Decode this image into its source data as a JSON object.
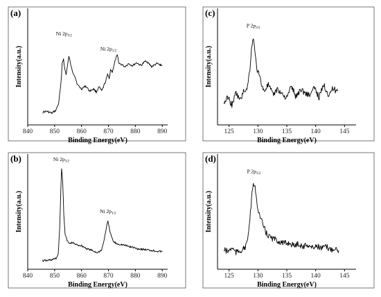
{
  "chart_data": [
    {
      "panel": "(a)",
      "type": "line",
      "xlabel": "Binding Energy(eV)",
      "ylabel": "Intensity(a.u.)",
      "xlim": [
        840,
        892
      ],
      "xticks": [
        840,
        850,
        860,
        870,
        880,
        890
      ],
      "ylim": [
        0,
        100
      ],
      "annotations": [
        {
          "text": "Ni 2p",
          "sub": "3/2",
          "x": 853.5,
          "y": 80
        },
        {
          "text": "Ni 2p",
          "sub": "1/2",
          "x": 870.0,
          "y": 65
        }
      ],
      "series": [
        {
          "x": [
            845.5,
            847,
            849,
            850.5,
            851.5,
            852.3,
            852.8,
            853.3,
            853.8,
            854.3,
            854.8,
            855.3,
            855.8,
            856.5,
            857.5,
            858.5,
            860,
            861.5,
            863,
            864.5,
            865.5,
            866.5,
            867.5,
            868.3,
            869,
            869.7,
            870.3,
            870.8,
            871.4,
            872,
            872.7,
            873.3,
            874,
            875,
            876,
            877.5,
            879,
            880.5,
            882,
            884,
            886,
            888,
            890
          ],
          "y": [
            7,
            8,
            6,
            9,
            16,
            34,
            55,
            60,
            49,
            44,
            54,
            62,
            56,
            48,
            43,
            34,
            30,
            33,
            28,
            30,
            27,
            32,
            28,
            33,
            38,
            44,
            41,
            49,
            47,
            52,
            60,
            63,
            55,
            54,
            52,
            55,
            53,
            56,
            53,
            58,
            52,
            55,
            53
          ]
        }
      ]
    },
    {
      "panel": "(b)",
      "type": "line",
      "xlabel": "Binding Energy(eV)",
      "ylabel": "Intensity(a.u.)",
      "xlim": [
        840,
        892
      ],
      "xticks": [
        840,
        850,
        860,
        870,
        880,
        890
      ],
      "ylim": [
        0,
        100
      ],
      "annotations": [
        {
          "text": "Ni 2p",
          "sub": "3/2",
          "x": 852.5,
          "y": 100
        },
        {
          "text": "Ni 2p",
          "sub": "1/2",
          "x": 869.8,
          "y": 48
        }
      ],
      "series": [
        {
          "x": [
            845.5,
            847,
            849,
            850.5,
            851.3,
            851.9,
            852.3,
            852.6,
            853.0,
            853.4,
            853.9,
            854.6,
            855.5,
            856.5,
            858,
            860,
            862,
            864,
            866,
            867.5,
            868.5,
            869.2,
            869.8,
            870.3,
            871,
            871.8,
            873,
            875,
            878,
            881,
            884,
            887,
            890
          ],
          "y": [
            3,
            3,
            4,
            5,
            9,
            35,
            75,
            95,
            82,
            50,
            30,
            23,
            20,
            21,
            19,
            18,
            15,
            13,
            11,
            14,
            25,
            36,
            42,
            36,
            28,
            22,
            20,
            19,
            17,
            15,
            14,
            13,
            12
          ]
        }
      ]
    },
    {
      "panel": "(c)",
      "type": "line",
      "xlabel": "Binding Energy(eV)",
      "ylabel": "Intensity(a.u.)",
      "xlim": [
        123,
        147
      ],
      "xticks": [
        125,
        130,
        135,
        140,
        145
      ],
      "ylim": [
        0,
        100
      ],
      "annotations": [
        {
          "text": "P 2p",
          "sub": "3/2",
          "x": 129.2,
          "y": 88
        }
      ],
      "series": [
        {
          "x": [
            124.1,
            124.8,
            125.5,
            126.2,
            126.9,
            127.6,
            128.2,
            128.6,
            128.9,
            129.2,
            129.5,
            129.9,
            130.4,
            131.0,
            131.8,
            132.6,
            133.4,
            134.2,
            135.0,
            135.8,
            136.6,
            137.4,
            138.2,
            139.0,
            139.8,
            140.6,
            141.4,
            142.2,
            143.0,
            143.8
          ],
          "y": [
            16,
            22,
            14,
            26,
            19,
            28,
            32,
            50,
            70,
            82,
            64,
            48,
            40,
            28,
            34,
            24,
            30,
            25,
            21,
            33,
            22,
            30,
            26,
            24,
            31,
            22,
            34,
            25,
            30,
            28
          ]
        }
      ]
    },
    {
      "panel": "(d)",
      "type": "line",
      "xlabel": "Binding Energy(eV)",
      "ylabel": "Intensity(a.u.)",
      "xlim": [
        123,
        147
      ],
      "xticks": [
        125,
        130,
        135,
        140,
        145
      ],
      "ylim": [
        0,
        100
      ],
      "annotations": [
        {
          "text": "P 2p",
          "sub": "3/2",
          "x": 129.3,
          "y": 88
        }
      ],
      "series": [
        {
          "x": [
            124.1,
            124.8,
            125.5,
            126.2,
            126.9,
            127.6,
            128.1,
            128.5,
            128.8,
            129.1,
            129.4,
            129.7,
            130.0,
            130.4,
            130.9,
            131.5,
            132.2,
            133.0,
            133.8,
            134.6,
            135.4,
            136.2,
            137.0,
            137.8,
            138.6,
            139.4,
            140.2,
            141.0,
            141.8,
            142.6,
            143.4,
            144.0
          ],
          "y": [
            14,
            12,
            16,
            11,
            13,
            15,
            20,
            38,
            58,
            76,
            80,
            66,
            56,
            46,
            38,
            30,
            26,
            24,
            22,
            20,
            21,
            18,
            20,
            17,
            19,
            16,
            18,
            15,
            17,
            14,
            16,
            13
          ]
        }
      ]
    }
  ]
}
